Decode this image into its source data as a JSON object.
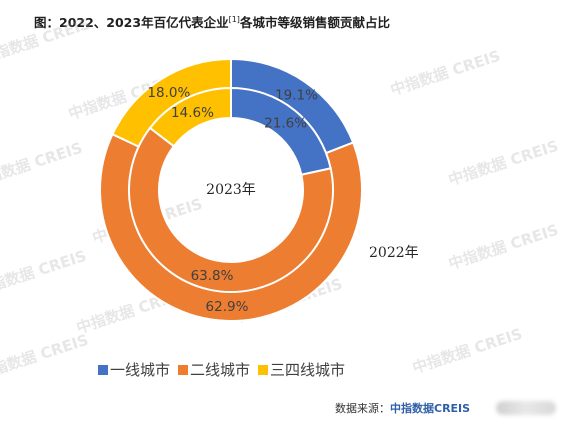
{
  "title_main": "图：2022、2023年百亿代表企业",
  "title_sup": "[1]",
  "title_tail": "各城市等级销售额贡献占比",
  "center_label": "2023年",
  "outer_label": "2022年",
  "source_prefix": "数据来源：",
  "source_brand": "中指数据CREIS",
  "watermark_text": "中指数据 CREIS",
  "colors": {
    "tier1": "#4472c4",
    "tier2": "#ed7d31",
    "tier34": "#ffc000"
  },
  "chart_data": {
    "type": "donut",
    "categories": [
      "一线城市",
      "二线城市",
      "三四线城市"
    ],
    "series": [
      {
        "name": "2022年",
        "ring": "outer",
        "values": [
          19.1,
          62.9,
          18.0
        ],
        "labels": [
          "19.1%",
          "62.9%",
          "18.0%"
        ]
      },
      {
        "name": "2023年",
        "ring": "inner",
        "values": [
          21.6,
          63.8,
          14.6
        ],
        "labels": [
          "21.6%",
          "63.8%",
          "14.6%"
        ]
      }
    ],
    "legend_position": "bottom"
  },
  "legend": [
    {
      "label": "一线城市",
      "color": "#4472c4"
    },
    {
      "label": "二线城市",
      "color": "#ed7d31"
    },
    {
      "label": "三四线城市",
      "color": "#ffc000"
    }
  ]
}
